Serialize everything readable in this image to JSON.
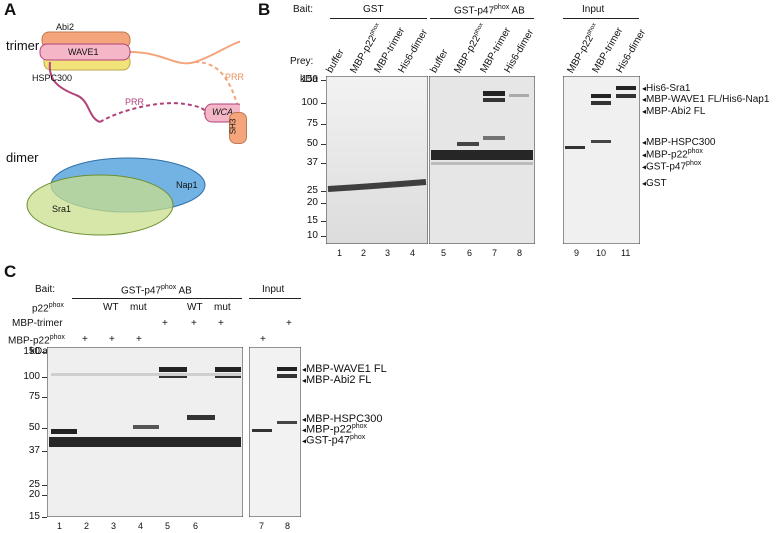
{
  "panels": {
    "A": {
      "letter": "A",
      "trimer_label": "trimer",
      "dimer_label": "dimer",
      "abi2": "Abi2",
      "wave1": "WAVE1",
      "hspc300": "HSPC300",
      "prr_right": "PRR",
      "prr_left": "PRR",
      "wca": "WCA",
      "sh3": "SH3",
      "nap1": "Nap1",
      "sra1": "Sra1",
      "colors": {
        "abi2": "#f4a57c",
        "wave1": "#f5b7c8",
        "hspc300": "#f2e27a",
        "nap1": "#5aa6df",
        "sra1": "#c8df8c",
        "prr_right": "#f4a57c",
        "prr_left": "#b1427a"
      }
    },
    "B": {
      "letter": "B",
      "bait_label": "Bait:",
      "bait_gst": "GST",
      "bait_gstp47": "GST-p47",
      "bait_gstp47_sup": "phox",
      "bait_gstp47_suffix": " AB",
      "input_label": "Input",
      "prey_label": "Prey:",
      "kda_label": "kDa",
      "lanes_gst": [
        "buffer",
        "MBP-p22",
        "MBP-trimer",
        "His6-dimer"
      ],
      "lanes_ab": [
        "buffer",
        "MBP-p22",
        "MBP-trimer",
        "His6-dimer"
      ],
      "lanes_input": [
        "MBP-p22",
        "MBP-trimer",
        "His6-dimer"
      ],
      "sup_phox": "phox",
      "markers": [
        "150",
        "100",
        "75",
        "50",
        "37",
        "25",
        "20",
        "15",
        "10"
      ],
      "lane_numbers": [
        "1",
        "2",
        "3",
        "4",
        "5",
        "6",
        "7",
        "8",
        "9",
        "10",
        "11"
      ],
      "band_labels": [
        {
          "text": "His6-Sra1"
        },
        {
          "text": "MBP-WAVE1 FL/His6-Nap1"
        },
        {
          "text": "MBP-Abi2 FL"
        },
        {
          "text": "MBP-HSPC300"
        },
        {
          "text": "MBP-p22",
          "sup": "phox"
        },
        {
          "text": "GST-p47",
          "sup": "phox"
        },
        {
          "text": "GST"
        }
      ]
    },
    "C": {
      "letter": "C",
      "bait_label": "Bait:",
      "bait_gstp47": "GST-p47",
      "bait_gstp47_sup": "phox",
      "bait_gstp47_suffix": " AB",
      "input_label": "Input",
      "kda_label": "kDa",
      "row_labels": [
        {
          "text": "p22",
          "sup": "phox"
        },
        {
          "text": "MBP-trimer",
          "sup": ""
        },
        {
          "text": "MBP-p22",
          "sup": "phox"
        }
      ],
      "p22_row": [
        "WT",
        "mut",
        "WT",
        "mut"
      ],
      "plus": "+",
      "markers": [
        "150",
        "100",
        "75",
        "50",
        "37",
        "25",
        "20",
        "15"
      ],
      "lane_numbers": [
        "1",
        "2",
        "3",
        "4",
        "5",
        "6",
        "7",
        "8"
      ],
      "band_labels": [
        {
          "text": "MBP-WAVE1 FL"
        },
        {
          "text": "MBP-Abi2 FL"
        },
        {
          "text": "MBP-HSPC300"
        },
        {
          "text": "MBP-p22",
          "sup": "phox"
        },
        {
          "text": "GST-p47",
          "sup": "phox"
        }
      ]
    }
  }
}
